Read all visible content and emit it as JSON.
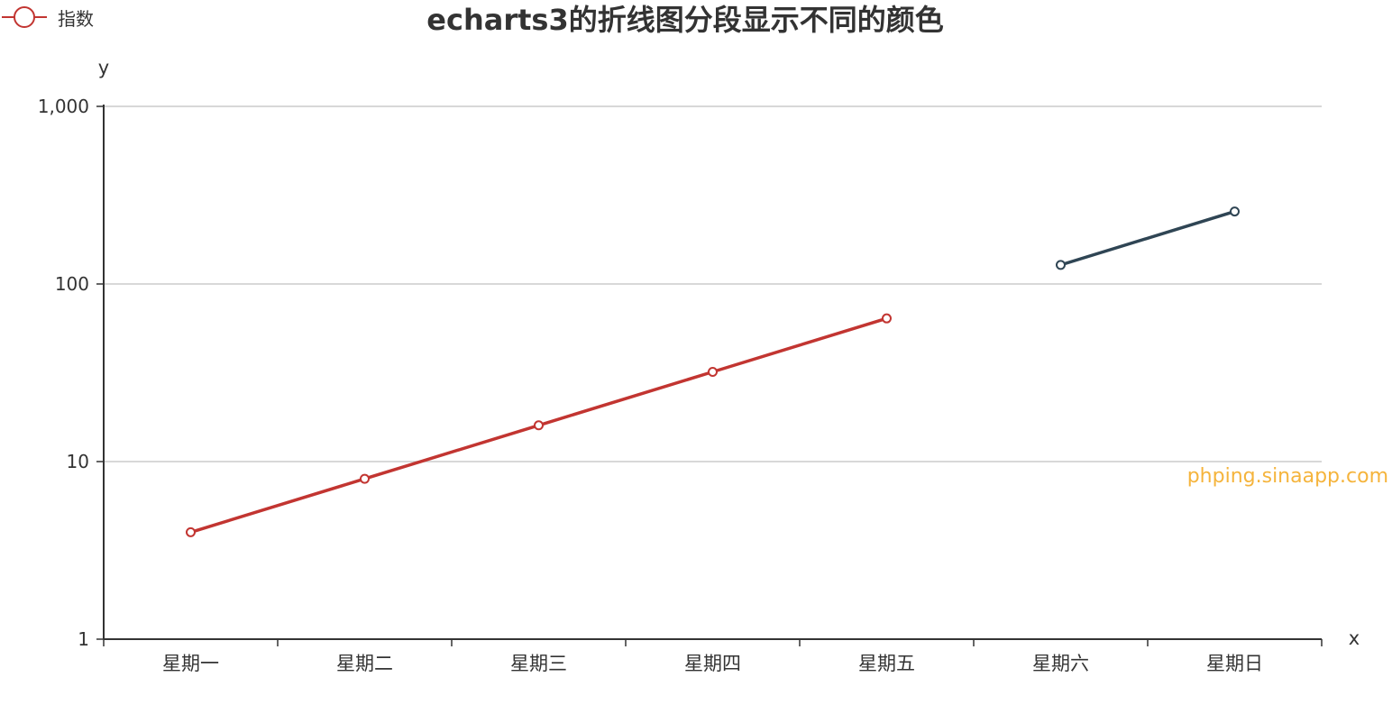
{
  "chart_data": {
    "type": "line",
    "title": "echarts3的折线图分段显示不同的颜色",
    "xlabel": "x",
    "ylabel": "y",
    "categories": [
      "星期一",
      "星期二",
      "星期三",
      "星期四",
      "星期五",
      "星期六",
      "星期日"
    ],
    "y_scale": "log",
    "ylim": [
      1,
      1000
    ],
    "y_ticks": [
      1,
      10,
      100,
      1000
    ],
    "y_tick_labels": [
      "1",
      "10",
      "100",
      "1,000"
    ],
    "grid": "horizontal",
    "legend_position": "top-left",
    "series": [
      {
        "name": "指数",
        "values": [
          4,
          8,
          16,
          32,
          64,
          128,
          256
        ]
      }
    ],
    "segments": [
      {
        "from": 0,
        "to": 4,
        "color": "#c23531"
      },
      {
        "from": 5,
        "to": 6,
        "color": "#2f4554"
      }
    ],
    "watermark": "phping.sinaapp.com"
  },
  "colors": {
    "series_primary": "#c23531",
    "series_secondary": "#2f4554",
    "axis": "#333333",
    "grid": "#cccccc",
    "watermark": "#f5b43c"
  }
}
